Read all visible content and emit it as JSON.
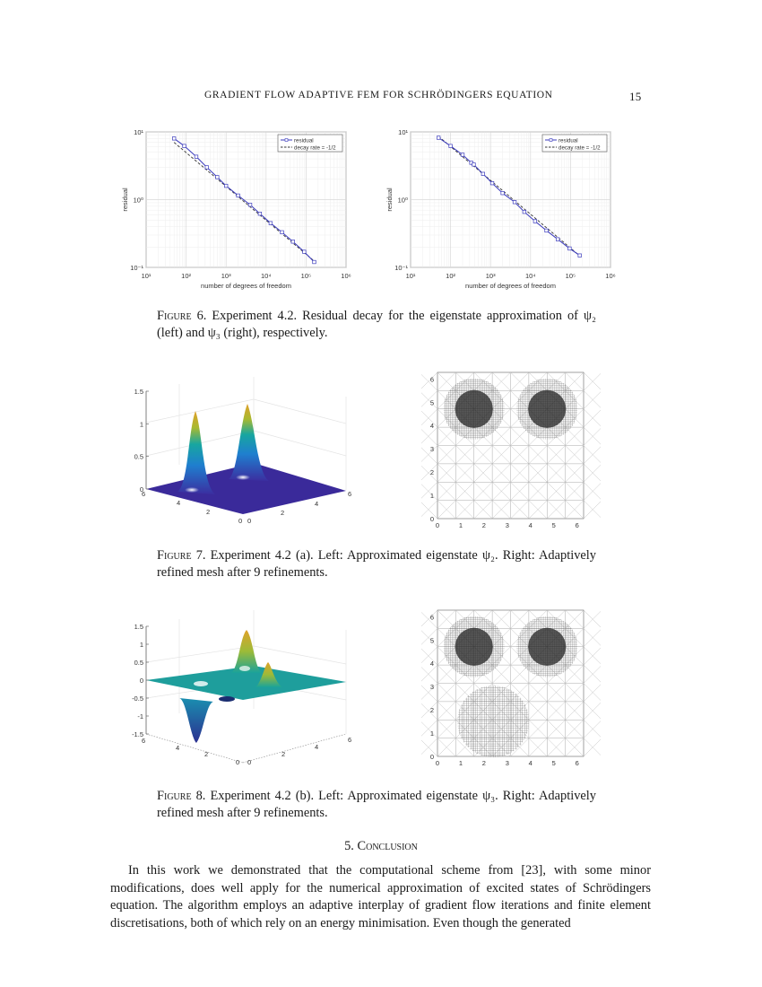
{
  "header": {
    "running_title": "GRADIENT FLOW ADAPTIVE FEM FOR SCHRÖDINGERS EQUATION",
    "page_number": "15"
  },
  "figure6": {
    "caption_label": "Figure 6.",
    "caption_text": "Experiment 4.2. Residual decay for the eigenstate approximation of ψ₂ (left) and ψ₃ (right), respectively.",
    "legend_residual": "residual",
    "legend_decay": "decay rate = -1/2",
    "xlabel": "number of degrees of freedom",
    "ylabel": "residual",
    "xticks": [
      "10¹",
      "10²",
      "10³",
      "10⁴",
      "10⁵",
      "10⁶"
    ],
    "yticks": [
      "10¹",
      "10⁰",
      "10⁻¹"
    ]
  },
  "figure7": {
    "caption_label": "Figure 7.",
    "caption_text": "Experiment 4.2 (a). Left: Approximated eigenstate ψ₂. Right: Adaptively refined mesh after 9 refinements.",
    "surface_zticks": [
      "1.5",
      "1",
      "0.5",
      "0"
    ],
    "surface_xticks": [
      "0",
      "2",
      "4",
      "6"
    ],
    "surface_yticks": [
      "6",
      "4",
      "2",
      "0"
    ],
    "mesh_ticks": [
      "0",
      "1",
      "2",
      "3",
      "4",
      "5",
      "6"
    ]
  },
  "figure8": {
    "caption_label": "Figure 8.",
    "caption_text": "Experiment 4.2 (b). Left: Approximated eigenstate ψ₃. Right: Adaptively refined mesh after 9 refinements.",
    "surface_zticks": [
      "1.5",
      "1",
      "0.5",
      "0",
      "-0.5",
      "-1",
      "-1.5"
    ],
    "surface_xticks": [
      "0",
      "2",
      "4",
      "6"
    ],
    "surface_yticks": [
      "6",
      "4",
      "2",
      "0"
    ],
    "mesh_ticks": [
      "0",
      "1",
      "2",
      "3",
      "4",
      "5",
      "6"
    ]
  },
  "section": {
    "number": "5.",
    "title": "Conclusion"
  },
  "paragraph": "In this work we demonstrated that the computational scheme from [23], with some minor modifications, does well apply for the numerical approximation of excited states of Schrödingers equation. The algorithm employs an adaptive interplay of gradient flow iterations and finite element discretisations, both of which rely on an energy minimisation. Even though the generated",
  "colors": {
    "residual_line": "#3b3bbd",
    "decay_line": "#333333",
    "grid": "#e3e3e3"
  },
  "chart_data": [
    {
      "type": "line",
      "title": "Residual decay ψ2 (left)",
      "xlabel": "number of degrees of freedom",
      "ylabel": "residual",
      "xscale": "log",
      "yscale": "log",
      "xlim": [
        10,
        1000000
      ],
      "ylim": [
        0.1,
        10
      ],
      "grid": true,
      "legend_position": "upper right",
      "series": [
        {
          "name": "residual",
          "x": [
            50,
            90,
            180,
            330,
            600,
            1000,
            2000,
            4000,
            7000,
            13000,
            25000,
            47000,
            90000,
            160000
          ],
          "y": [
            8.0,
            6.2,
            4.3,
            3.0,
            2.15,
            1.6,
            1.15,
            0.84,
            0.62,
            0.45,
            0.33,
            0.24,
            0.17,
            0.12
          ]
        },
        {
          "name": "decay rate = -1/2",
          "x": [
            50,
            160000
          ],
          "y": [
            7.0,
            0.124
          ]
        }
      ]
    },
    {
      "type": "line",
      "title": "Residual decay ψ3 (right)",
      "xlabel": "number of degrees of freedom",
      "ylabel": "residual",
      "xscale": "log",
      "yscale": "log",
      "xlim": [
        10,
        1000000
      ],
      "ylim": [
        0.1,
        10
      ],
      "grid": true,
      "legend_position": "upper right",
      "series": [
        {
          "name": "residual",
          "x": [
            50,
            100,
            200,
            330,
            380,
            650,
            1100,
            2000,
            4000,
            7000,
            13000,
            25000,
            48000,
            95000,
            170000
          ],
          "y": [
            8.2,
            6.2,
            4.6,
            3.5,
            3.3,
            2.4,
            1.75,
            1.25,
            0.92,
            0.66,
            0.48,
            0.35,
            0.26,
            0.19,
            0.15
          ]
        },
        {
          "name": "decay rate = -1/2",
          "x": [
            50,
            170000
          ],
          "y": [
            8.6,
            0.148
          ]
        }
      ]
    }
  ]
}
